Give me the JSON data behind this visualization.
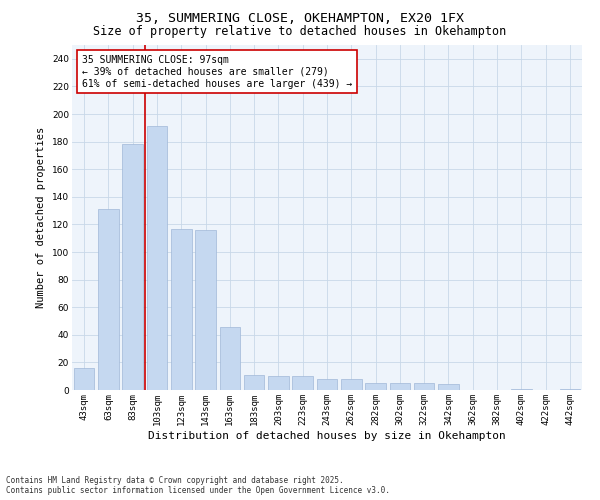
{
  "title": "35, SUMMERING CLOSE, OKEHAMPTON, EX20 1FX",
  "subtitle": "Size of property relative to detached houses in Okehampton",
  "xlabel": "Distribution of detached houses by size in Okehampton",
  "ylabel": "Number of detached properties",
  "categories": [
    "43sqm",
    "63sqm",
    "83sqm",
    "103sqm",
    "123sqm",
    "143sqm",
    "163sqm",
    "183sqm",
    "203sqm",
    "223sqm",
    "243sqm",
    "262sqm",
    "282sqm",
    "302sqm",
    "322sqm",
    "342sqm",
    "362sqm",
    "382sqm",
    "402sqm",
    "422sqm",
    "442sqm"
  ],
  "values": [
    16,
    131,
    178,
    191,
    117,
    116,
    46,
    11,
    10,
    10,
    8,
    8,
    5,
    5,
    5,
    4,
    0,
    0,
    1,
    0,
    1
  ],
  "bar_color": "#c5d8f0",
  "bar_edge_color": "#a0b8d8",
  "vline_color": "#cc0000",
  "vline_index": 2.5,
  "annotation_text": "35 SUMMERING CLOSE: 97sqm\n← 39% of detached houses are smaller (279)\n61% of semi-detached houses are larger (439) →",
  "annotation_box_color": "#ffffff",
  "annotation_box_edge": "#cc0000",
  "ylim": [
    0,
    250
  ],
  "yticks": [
    0,
    20,
    40,
    60,
    80,
    100,
    120,
    140,
    160,
    180,
    200,
    220,
    240
  ],
  "grid_color": "#c8d8e8",
  "bg_color": "#eef4fb",
  "footer": "Contains HM Land Registry data © Crown copyright and database right 2025.\nContains public sector information licensed under the Open Government Licence v3.0.",
  "title_fontsize": 9.5,
  "subtitle_fontsize": 8.5,
  "xlabel_fontsize": 8,
  "ylabel_fontsize": 7.5,
  "tick_fontsize": 6.5,
  "annotation_fontsize": 7,
  "footer_fontsize": 5.5
}
